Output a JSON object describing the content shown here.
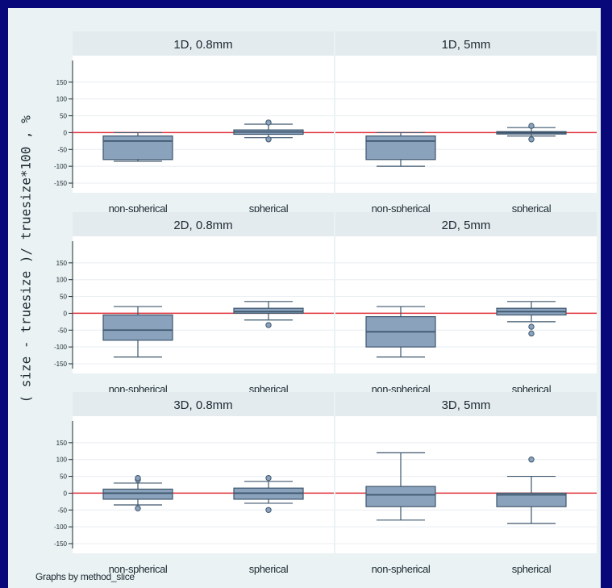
{
  "chart_data": {
    "type": "box",
    "ylabel": "( size - truesize )/ truesize*100 , %",
    "note": "Graphs by method_slice",
    "categories": [
      "non-spherical",
      "spherical"
    ],
    "reference_line": {
      "y": 0,
      "color": "#e0303a"
    },
    "ylim": [
      -150,
      200
    ],
    "colors": {
      "box_fill": "#8ba2bd",
      "box_stroke": "#3d566c",
      "panel_bg": "#ffffff",
      "strip_bg": "#e4ebee",
      "frame_bg": "#eaf2f3",
      "page_bg": "#08087a"
    },
    "panels": [
      {
        "title": "1D, 0.8mm",
        "boxes": [
          {
            "category": "non-spherical",
            "whisker_low": -85,
            "q1": -80,
            "median": -25,
            "q3": -10,
            "whisker_high": 0,
            "outliers": []
          },
          {
            "category": "spherical",
            "whisker_low": -15,
            "q1": -5,
            "median": 2,
            "q3": 8,
            "whisker_high": 25,
            "outliers": [
              -20,
              30
            ]
          }
        ]
      },
      {
        "title": "1D, 5mm",
        "boxes": [
          {
            "category": "non-spherical",
            "whisker_low": -100,
            "q1": -80,
            "median": -25,
            "q3": -10,
            "whisker_high": 0,
            "outliers": []
          },
          {
            "category": "spherical",
            "whisker_low": -10,
            "q1": -3,
            "median": 0,
            "q3": 3,
            "whisker_high": 15,
            "outliers": [
              -20,
              20
            ]
          }
        ]
      },
      {
        "title": "2D, 0.8mm",
        "boxes": [
          {
            "category": "non-spherical",
            "whisker_low": -130,
            "q1": -80,
            "median": -50,
            "q3": -5,
            "whisker_high": 20,
            "outliers": []
          },
          {
            "category": "spherical",
            "whisker_low": -20,
            "q1": 0,
            "median": 5,
            "q3": 15,
            "whisker_high": 35,
            "outliers": [
              -35
            ]
          }
        ]
      },
      {
        "title": "2D, 5mm",
        "boxes": [
          {
            "category": "non-spherical",
            "whisker_low": -130,
            "q1": -100,
            "median": -55,
            "q3": -10,
            "whisker_high": 20,
            "outliers": []
          },
          {
            "category": "spherical",
            "whisker_low": -25,
            "q1": -5,
            "median": 5,
            "q3": 15,
            "whisker_high": 35,
            "outliers": [
              -40,
              -60
            ]
          }
        ]
      },
      {
        "title": "3D, 0.8mm",
        "boxes": [
          {
            "category": "non-spherical",
            "whisker_low": -35,
            "q1": -18,
            "median": 0,
            "q3": 12,
            "whisker_high": 30,
            "outliers": [
              -45,
              40,
              45
            ]
          },
          {
            "category": "spherical",
            "whisker_low": -30,
            "q1": -18,
            "median": 0,
            "q3": 15,
            "whisker_high": 35,
            "outliers": [
              -50,
              45
            ]
          }
        ]
      },
      {
        "title": "3D, 5mm",
        "boxes": [
          {
            "category": "non-spherical",
            "whisker_low": -80,
            "q1": -40,
            "median": -5,
            "q3": 20,
            "whisker_high": 120,
            "outliers": []
          },
          {
            "category": "spherical",
            "whisker_low": -90,
            "q1": -40,
            "median": -5,
            "q3": 0,
            "whisker_high": 50,
            "outliers": [
              100
            ]
          }
        ]
      }
    ]
  }
}
